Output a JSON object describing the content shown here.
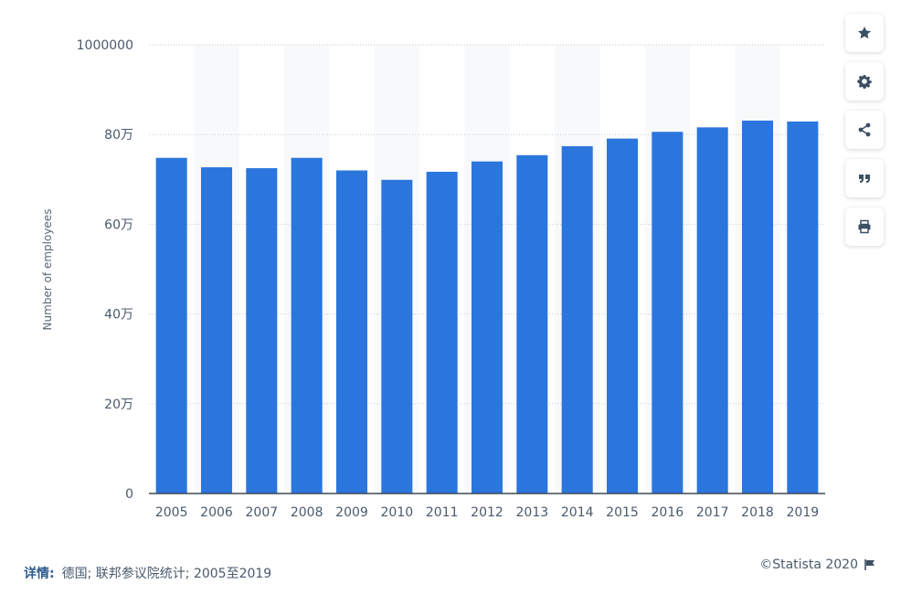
{
  "chart_data": {
    "type": "bar",
    "title": "",
    "xlabel": "",
    "ylabel": "Number of employees",
    "categories": [
      "2005",
      "2006",
      "2007",
      "2008",
      "2009",
      "2010",
      "2011",
      "2012",
      "2013",
      "2014",
      "2015",
      "2016",
      "2017",
      "2018",
      "2019"
    ],
    "values": [
      748000,
      727000,
      725000,
      748000,
      720000,
      699000,
      717000,
      740000,
      754000,
      774000,
      791000,
      806000,
      816000,
      831000,
      829000
    ],
    "ylim": [
      0,
      1000000
    ],
    "yticks": [
      0,
      200000,
      400000,
      600000,
      800000,
      1000000
    ],
    "ytick_labels": [
      "0",
      "20万",
      "40万",
      "60万",
      "80万",
      "1000000"
    ],
    "grid": true,
    "bar_color": "#2a76dd"
  },
  "toolbar": {
    "buttons": [
      {
        "name": "favorite-button",
        "icon": "star-icon"
      },
      {
        "name": "settings-button",
        "icon": "gear-icon"
      },
      {
        "name": "share-button",
        "icon": "share-icon"
      },
      {
        "name": "cite-button",
        "icon": "quote-icon"
      },
      {
        "name": "print-button",
        "icon": "print-icon"
      }
    ]
  },
  "footer": {
    "details_label": "详情:",
    "details_text": "德国; 联邦参议院统计; 2005至2019",
    "credit": "©Statista 2020"
  }
}
